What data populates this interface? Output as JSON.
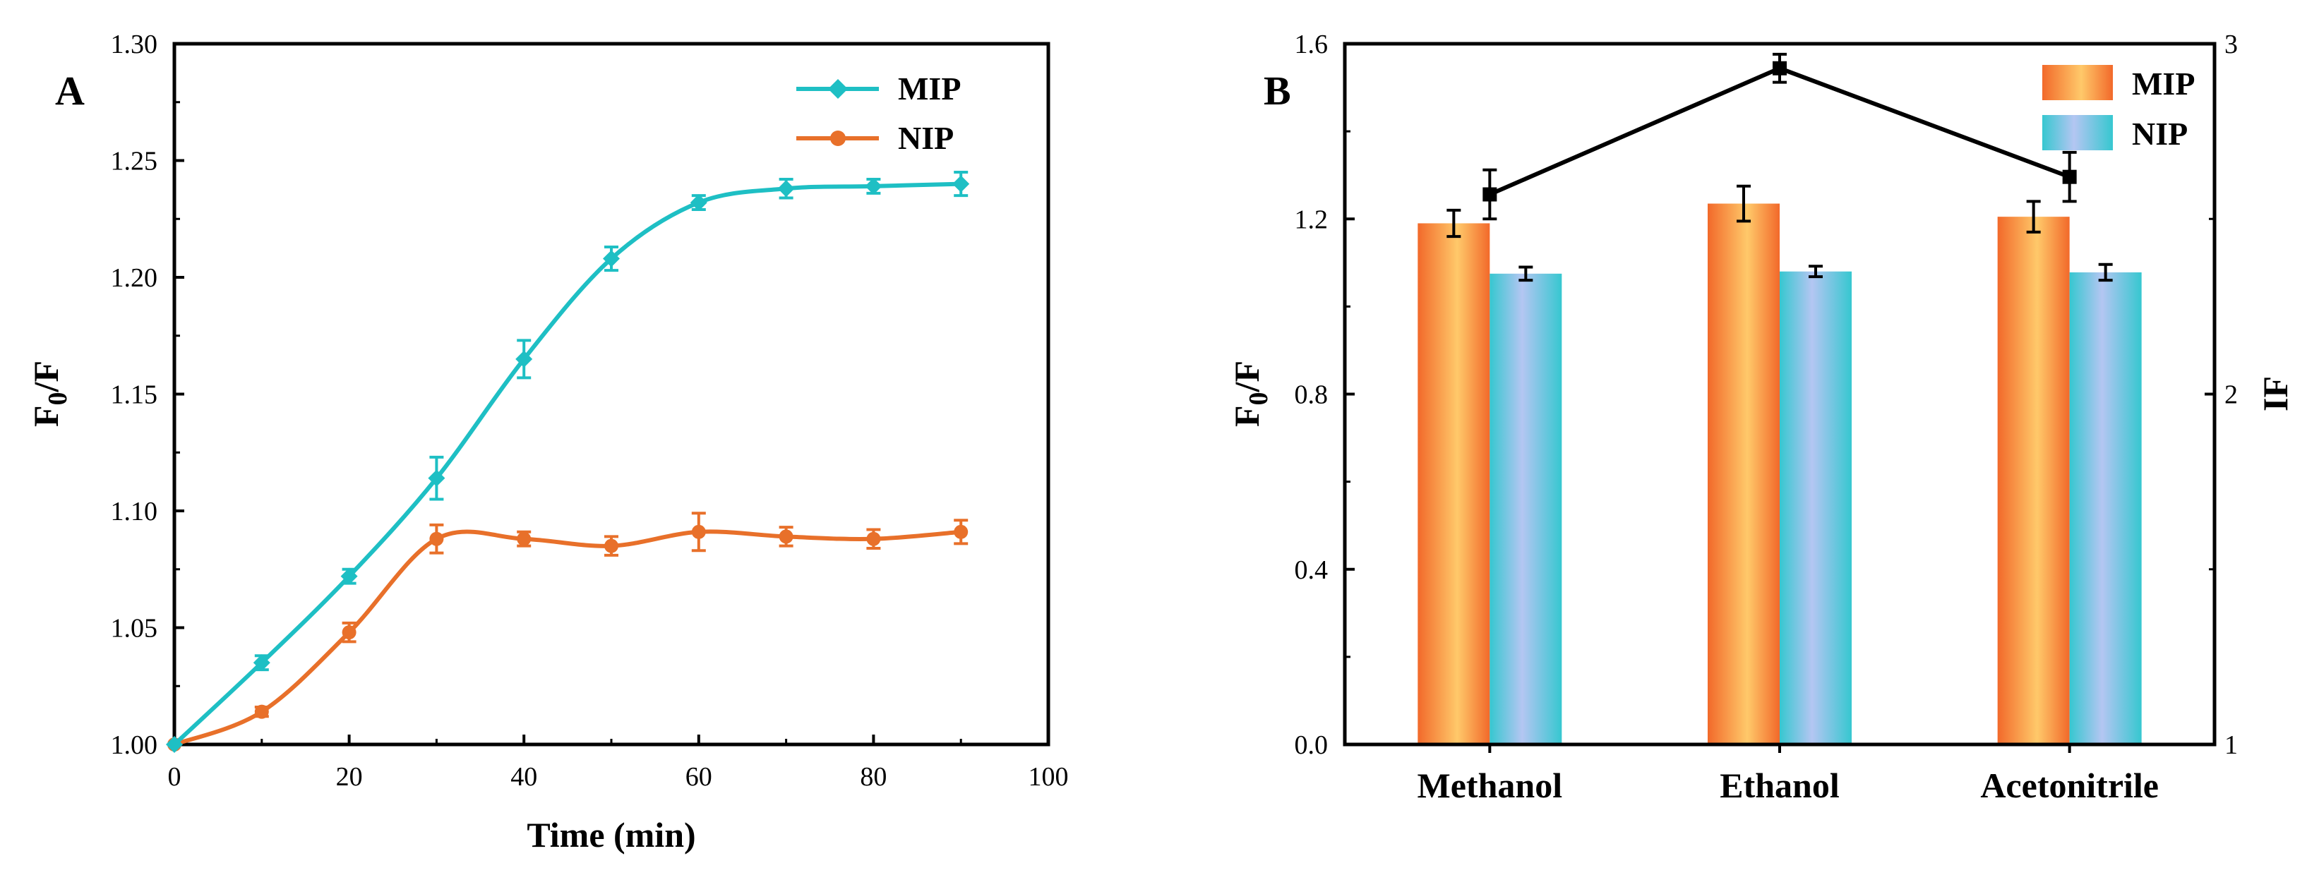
{
  "colors": {
    "mip_line": "#1ebfc4",
    "nip_line": "#e8702a",
    "if_line": "#000000",
    "mip_bar_dark": "#f2692a",
    "mip_bar_light": "#ffc96a",
    "nip_bar_dark": "#36c7d0",
    "nip_bar_light": "#b4c6f2"
  },
  "chart_data": [
    {
      "panel": "A",
      "type": "line",
      "xlabel": "Time (min)",
      "ylabel_main": "F",
      "ylabel_sub": "0",
      "ylabel_tail": "/F",
      "xlim": [
        0,
        100
      ],
      "ylim": [
        1.0,
        1.3
      ],
      "xticks": [
        "0",
        "20",
        "40",
        "60",
        "80",
        "100"
      ],
      "yticks": [
        "1.00",
        "1.05",
        "1.10",
        "1.15",
        "1.20",
        "1.25",
        "1.30"
      ],
      "legend_position": "top-right",
      "x": [
        0,
        10,
        20,
        30,
        40,
        50,
        60,
        70,
        80,
        90
      ],
      "series": [
        {
          "name": "MIP",
          "marker": "diamond",
          "values": [
            1.0,
            1.035,
            1.072,
            1.114,
            1.165,
            1.208,
            1.232,
            1.238,
            1.239,
            1.24
          ],
          "errors": [
            0.0,
            0.003,
            0.003,
            0.009,
            0.008,
            0.005,
            0.003,
            0.004,
            0.003,
            0.005
          ]
        },
        {
          "name": "NIP",
          "marker": "circle",
          "values": [
            1.0,
            1.014,
            1.048,
            1.088,
            1.088,
            1.085,
            1.091,
            1.089,
            1.088,
            1.091
          ],
          "errors": [
            0.0,
            0.002,
            0.004,
            0.006,
            0.003,
            0.004,
            0.008,
            0.004,
            0.004,
            0.005
          ]
        }
      ]
    },
    {
      "panel": "B",
      "type": "bar",
      "categories": [
        "Methanol",
        "Ethanol",
        "Acetonitrile"
      ],
      "ylabel_main": "F",
      "ylabel_sub": "0",
      "ylabel_tail": "/F",
      "ylabel_right": "IF",
      "ylim": [
        0.0,
        1.6
      ],
      "ylim_right": [
        1,
        3
      ],
      "yticks": [
        "0.0",
        "0.4",
        "0.8",
        "1.2",
        "1.6"
      ],
      "yticks_right": [
        "1",
        "2",
        "3"
      ],
      "legend_position": "top-right",
      "series": [
        {
          "name": "MIP",
          "values": [
            1.19,
            1.235,
            1.205
          ],
          "errors": [
            0.03,
            0.04,
            0.035
          ]
        },
        {
          "name": "NIP",
          "values": [
            1.075,
            1.08,
            1.078
          ],
          "errors": [
            0.015,
            0.012,
            0.018
          ]
        }
      ],
      "if_series": {
        "name": "IF",
        "values": [
          2.57,
          2.93,
          2.62
        ],
        "errors": [
          0.07,
          0.04,
          0.07
        ]
      }
    }
  ]
}
